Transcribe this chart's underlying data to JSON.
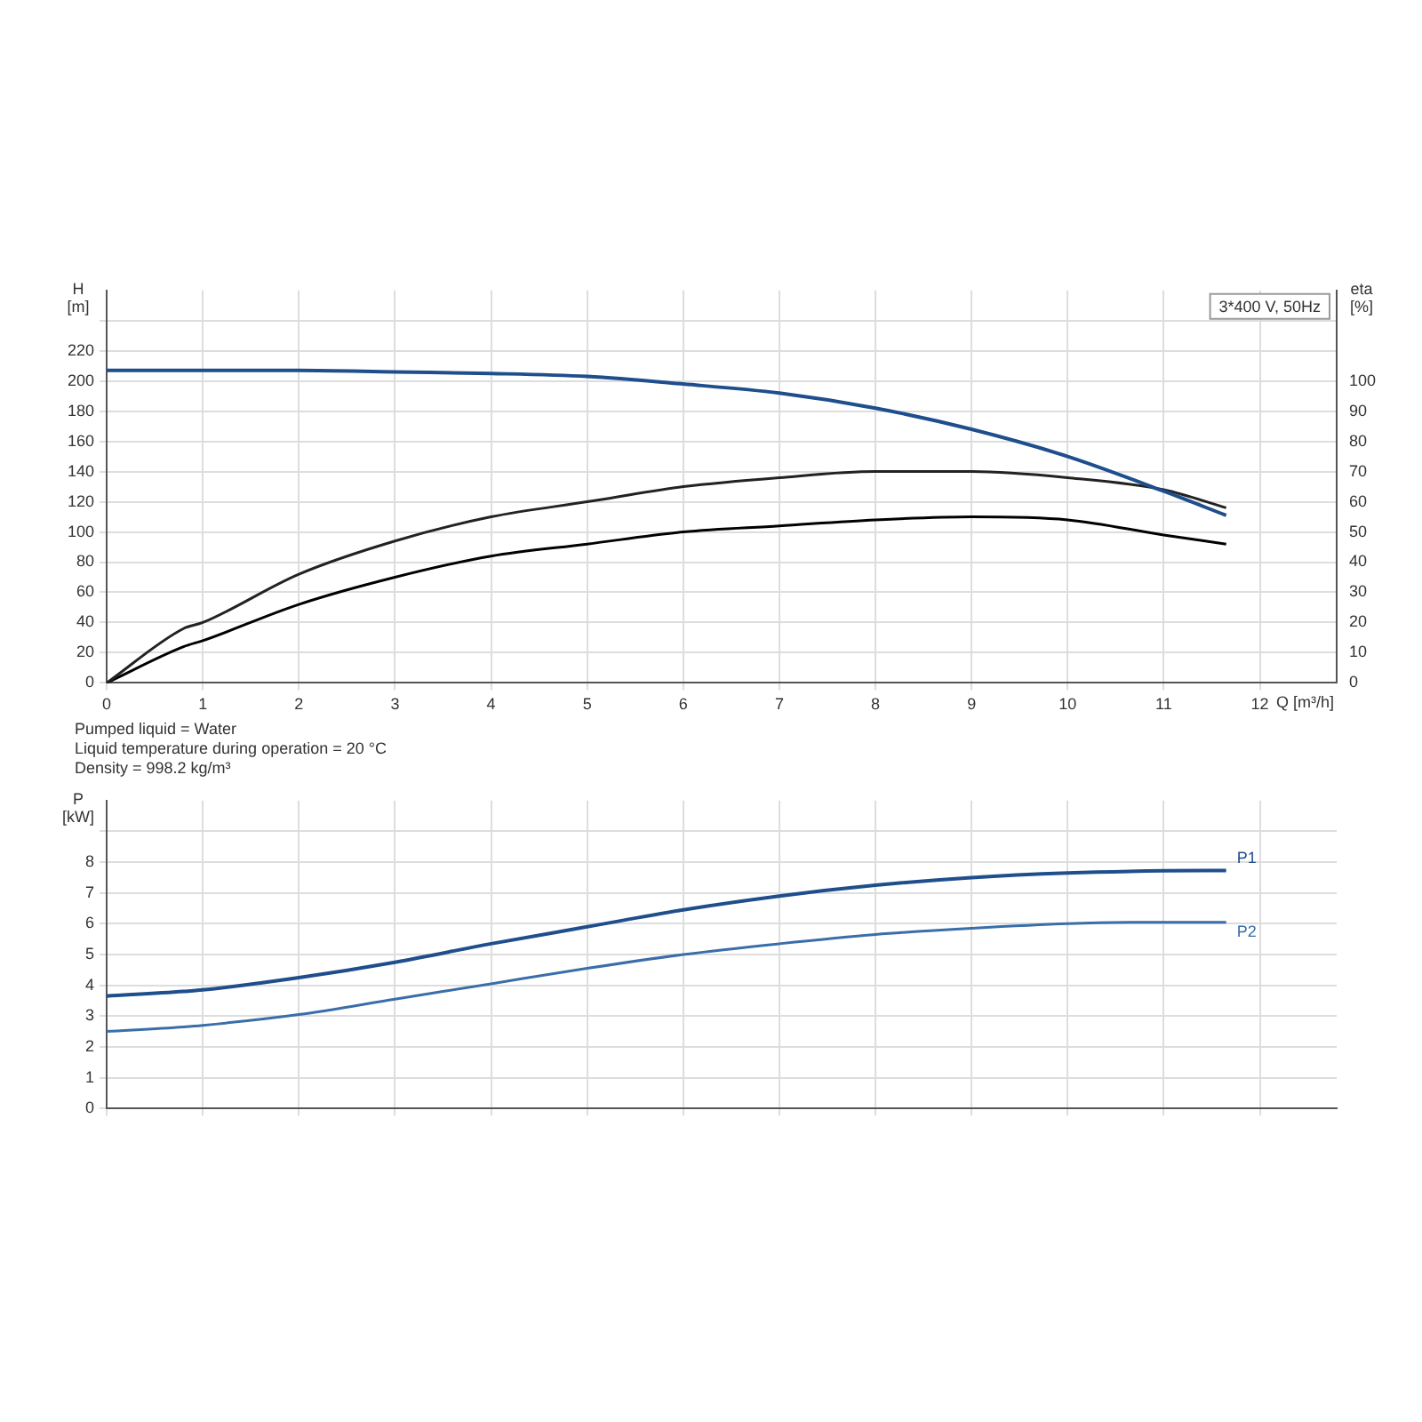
{
  "chart_data": [
    {
      "type": "line",
      "xlabel": "Q [m³/h]",
      "ylabel": "H [m]",
      "y2label": "eta [%]",
      "x": [
        0,
        0.8,
        1,
        2,
        3,
        4,
        5,
        6,
        7,
        8,
        9,
        10,
        11,
        11.65
      ],
      "series": [
        {
          "color": "#1f4e8c",
          "axis": "y",
          "values": [
            207,
            207,
            207,
            207,
            206,
            205,
            203,
            198,
            192,
            182,
            168,
            150,
            127,
            111
          ]
        },
        {
          "color": "#222222",
          "axis": "y2",
          "values": [
            0,
            18,
            20,
            36,
            47,
            55,
            60,
            65,
            68,
            70,
            70,
            68,
            64,
            58
          ]
        },
        {
          "color": "#000000",
          "axis": "y2",
          "values": [
            0,
            12,
            14,
            26,
            35,
            42,
            46,
            50,
            52,
            54,
            55,
            54,
            49,
            46
          ]
        }
      ],
      "xlim": [
        0,
        12.8
      ],
      "xticks": [
        0,
        1,
        2,
        3,
        4,
        5,
        6,
        7,
        8,
        9,
        10,
        11,
        12
      ],
      "ylim": [
        0,
        260
      ],
      "yticks": [
        0,
        20,
        40,
        60,
        80,
        100,
        120,
        140,
        160,
        180,
        200,
        220,
        {
          "value": 240,
          "label": null
        }
      ],
      "y2lim": [
        0,
        130
      ],
      "y2ticks": [
        0,
        10,
        20,
        30,
        40,
        50,
        60,
        70,
        80,
        90,
        100
      ],
      "grid": true,
      "legend": false,
      "marker": "none",
      "line_style": "solid",
      "annotations": [
        "3*400 V, 50Hz",
        "Pumped liquid = Water",
        "Liquid temperature during operation = 20 °C",
        "Density = 998.2 kg/m³"
      ]
    },
    {
      "type": "line",
      "ylabel": "P [kW]",
      "x": [
        0,
        0.8,
        1,
        2,
        3,
        4,
        5,
        6,
        7,
        8,
        9,
        10,
        11,
        11.65
      ],
      "series": [
        {
          "name": "P1",
          "color": "#1f4e8c",
          "values": [
            3.65,
            3.8,
            3.85,
            4.25,
            4.75,
            5.35,
            5.9,
            6.45,
            6.9,
            7.25,
            7.5,
            7.65,
            7.72,
            7.73
          ]
        },
        {
          "name": "P2",
          "color": "#3a6ea8",
          "values": [
            2.5,
            2.65,
            2.7,
            3.05,
            3.55,
            4.05,
            4.55,
            5.0,
            5.35,
            5.65,
            5.85,
            6.0,
            6.05,
            6.05
          ]
        }
      ],
      "xlim": [
        0,
        12.8
      ],
      "xticks": [
        0,
        1,
        2,
        3,
        4,
        5,
        6,
        7,
        8,
        9,
        10,
        11,
        12
      ],
      "ylim": [
        0,
        10
      ],
      "yticks": [
        0,
        1,
        2,
        3,
        4,
        5,
        6,
        7,
        8,
        {
          "value": 9,
          "label": null
        }
      ],
      "tick_labels": "y",
      "grid": true,
      "legend": false,
      "marker": "none",
      "line_style": "solid"
    }
  ]
}
